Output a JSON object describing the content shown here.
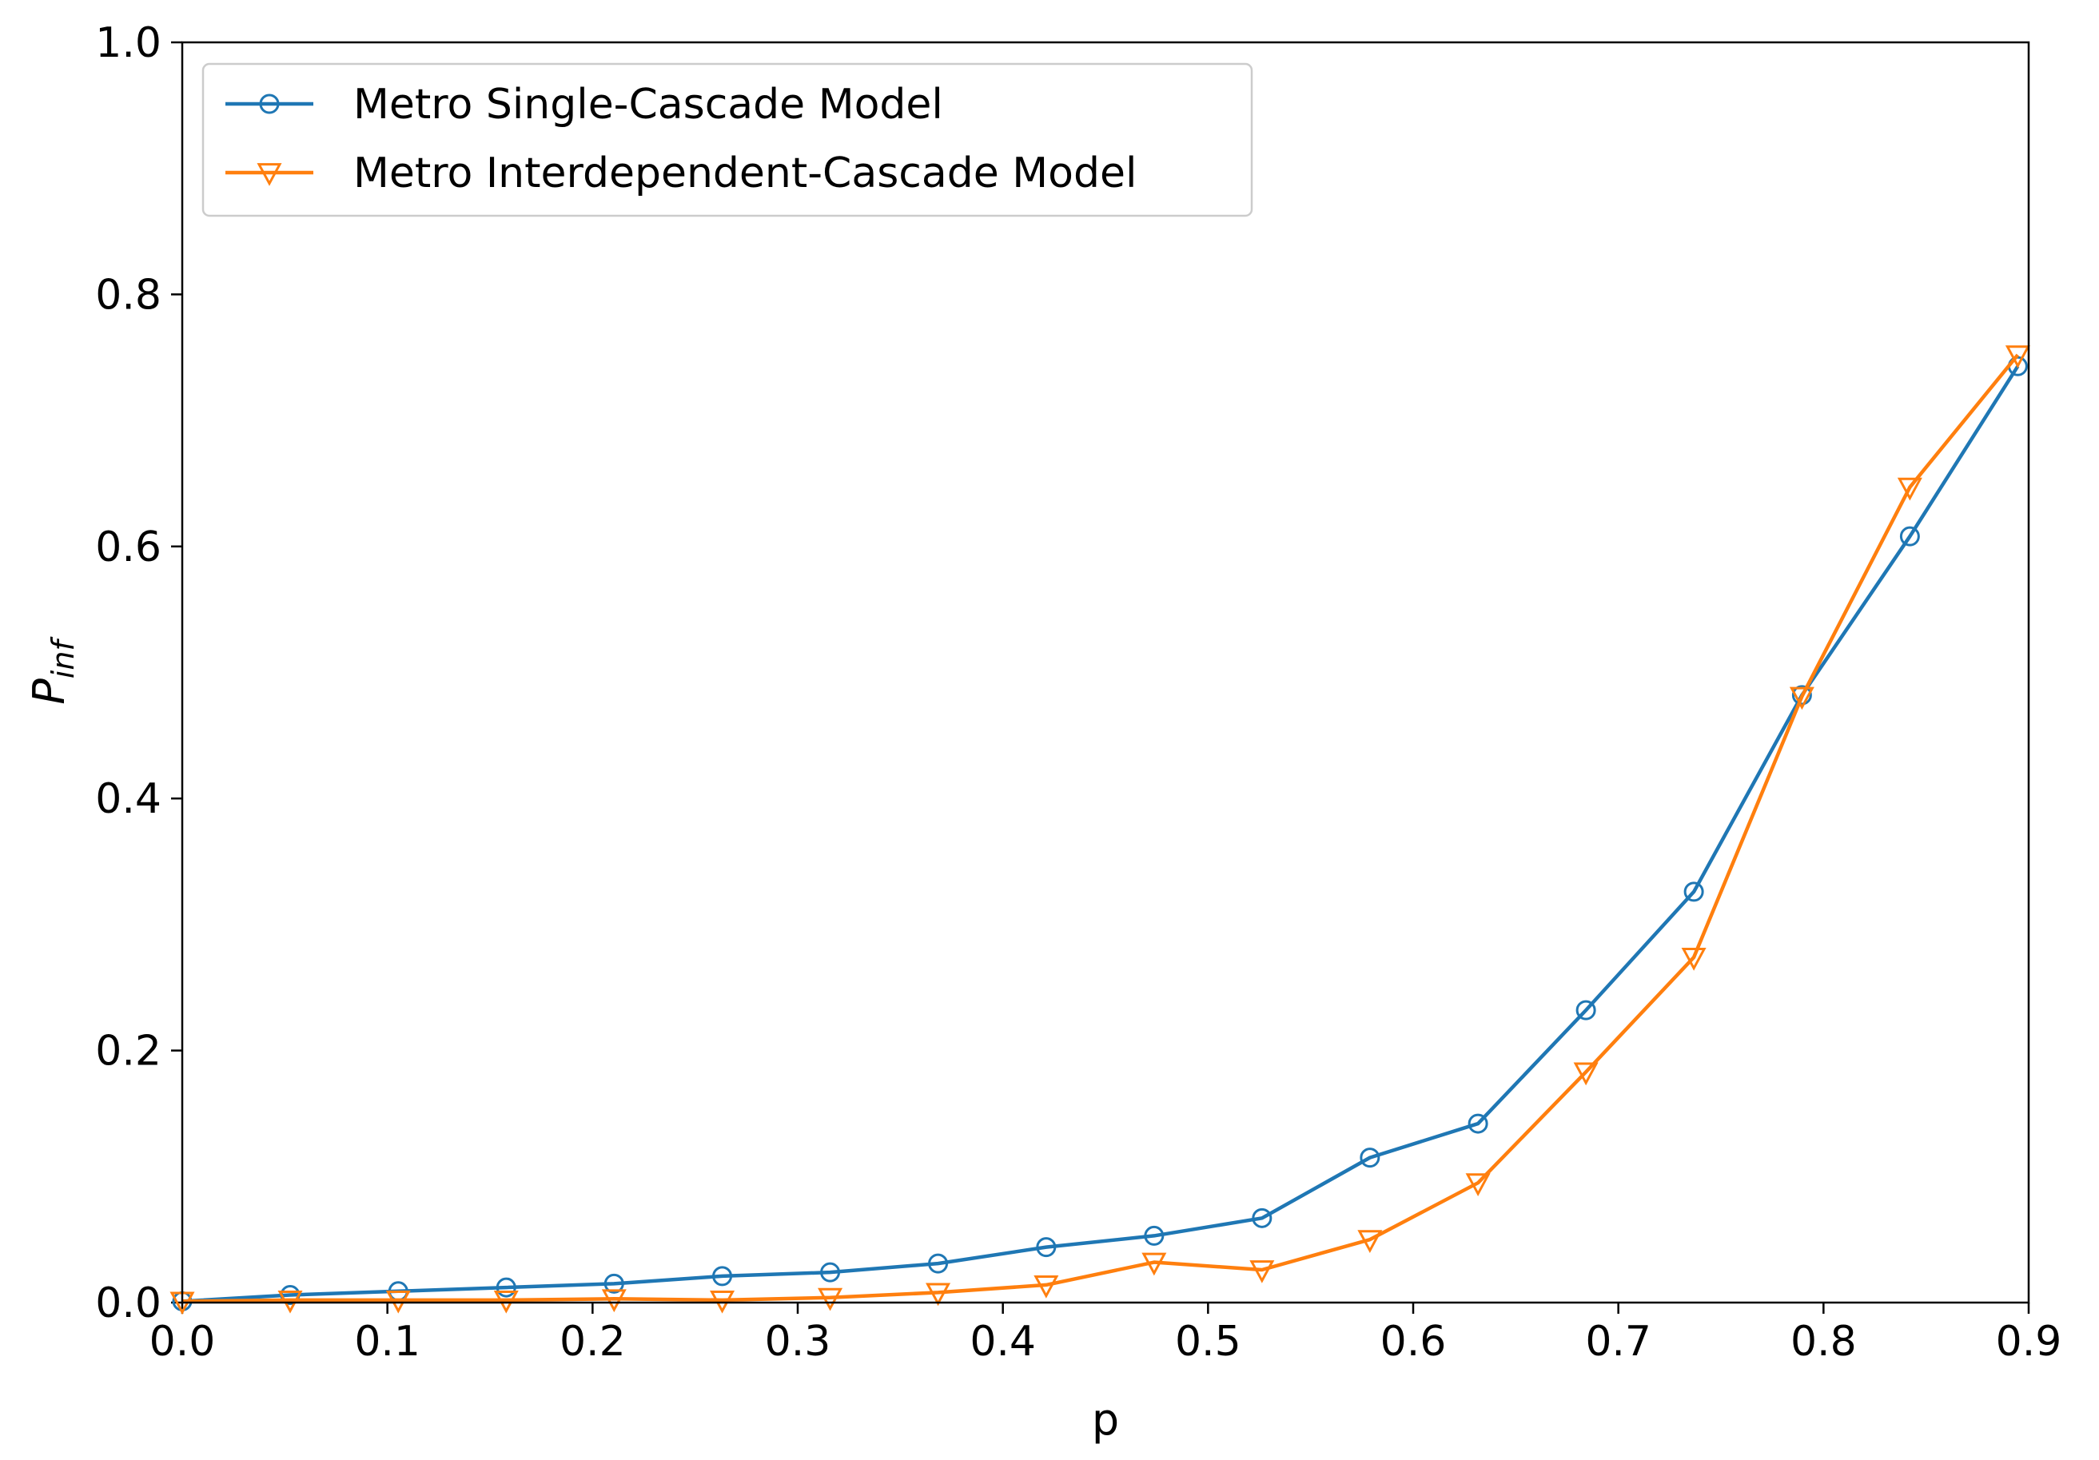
{
  "chart_data": {
    "type": "line",
    "title": "",
    "xlabel": "p",
    "ylabel_main": "P",
    "ylabel_sub": "inf",
    "xlim": [
      0.0,
      0.9
    ],
    "ylim": [
      0.0,
      1.0
    ],
    "x_ticks": [
      "0.0",
      "0.1",
      "0.2",
      "0.3",
      "0.4",
      "0.5",
      "0.6",
      "0.7",
      "0.8",
      "0.9"
    ],
    "y_ticks": [
      "0.0",
      "0.2",
      "0.4",
      "0.6",
      "0.8",
      "1.0"
    ],
    "grid": false,
    "legend_position": "top-left",
    "x": [
      0.0,
      0.0526,
      0.1053,
      0.1579,
      0.2105,
      0.2632,
      0.3158,
      0.3684,
      0.4211,
      0.4737,
      0.5263,
      0.5789,
      0.6316,
      0.6842,
      0.7368,
      0.7895,
      0.8421,
      0.8947
    ],
    "series": [
      {
        "name": "Metro Single-Cascade Model",
        "color": "#1f77b4",
        "marker": "circle",
        "values": [
          0.001,
          0.006,
          0.009,
          0.012,
          0.015,
          0.021,
          0.024,
          0.031,
          0.044,
          0.053,
          0.067,
          0.115,
          0.142,
          0.232,
          0.326,
          0.482,
          0.608,
          0.743
        ]
      },
      {
        "name": "Metro Interdependent-Cascade Model",
        "color": "#ff7f0e",
        "marker": "triangle-down",
        "values": [
          0.001,
          0.002,
          0.002,
          0.002,
          0.003,
          0.002,
          0.004,
          0.008,
          0.014,
          0.032,
          0.026,
          0.05,
          0.095,
          0.183,
          0.274,
          0.481,
          0.647,
          0.752
        ]
      }
    ]
  }
}
